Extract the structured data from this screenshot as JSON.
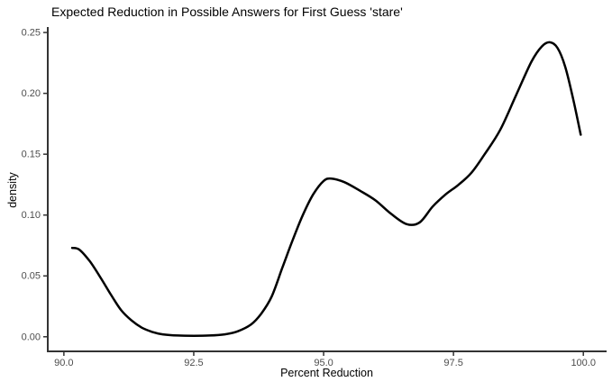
{
  "chart": {
    "title": "Expected Reduction in Possible Answers for First Guess 'stare'",
    "xlabel": "Percent Reduction",
    "ylabel": "density"
  },
  "chart_data": {
    "type": "line",
    "subtype": "density-curve",
    "title": "Expected Reduction in Possible Answers for First Guess 'stare'",
    "xlabel": "Percent Reduction",
    "ylabel": "density",
    "xlim": [
      89.69,
      100.43
    ],
    "ylim": [
      -0.012,
      0.2545
    ],
    "x_ticks": [
      90.0,
      92.5,
      95.0,
      97.5,
      100.0
    ],
    "x_tick_labels": [
      "90.0",
      "92.5",
      "95.0",
      "97.5",
      "100.0"
    ],
    "y_ticks": [
      0.0,
      0.05,
      0.1,
      0.15,
      0.2,
      0.25
    ],
    "y_tick_labels": [
      "0.00",
      "0.05",
      "0.10",
      "0.15",
      "0.20",
      "0.25"
    ],
    "grid": false,
    "legend_position": "none",
    "line_color": "#000000",
    "line_width": 2.5,
    "axis_line_color": "#333333",
    "tick_color": "#333333",
    "tick_label_color": "#4d4d4d",
    "background_color": "#ffffff",
    "series": [
      {
        "name": "density",
        "x": [
          90.16,
          90.3,
          90.5,
          90.7,
          90.9,
          91.1,
          91.3,
          91.5,
          91.7,
          91.9,
          92.2,
          92.5,
          92.8,
          93.1,
          93.35,
          93.6,
          93.8,
          94.0,
          94.2,
          94.4,
          94.6,
          94.8,
          95.0,
          95.15,
          95.4,
          95.7,
          96.0,
          96.3,
          96.6,
          96.85,
          97.1,
          97.35,
          97.6,
          97.85,
          98.1,
          98.4,
          98.7,
          99.0,
          99.2,
          99.35,
          99.5,
          99.65,
          99.8,
          99.95
        ],
        "y": [
          0.073,
          0.0715,
          0.062,
          0.049,
          0.035,
          0.022,
          0.0135,
          0.0075,
          0.004,
          0.002,
          0.001,
          0.0008,
          0.001,
          0.002,
          0.0045,
          0.01,
          0.019,
          0.033,
          0.056,
          0.079,
          0.1,
          0.117,
          0.128,
          0.13,
          0.127,
          0.12,
          0.112,
          0.101,
          0.0925,
          0.094,
          0.107,
          0.117,
          0.125,
          0.135,
          0.15,
          0.17,
          0.198,
          0.226,
          0.2385,
          0.242,
          0.2375,
          0.222,
          0.196,
          0.166
        ]
      }
    ],
    "annotations": {
      "local_max_1": {
        "x": 95.1,
        "y": 0.13
      },
      "local_min": {
        "x": 96.6,
        "y": 0.092
      },
      "peak": {
        "x": 99.3,
        "y": 0.242
      },
      "right_end": {
        "x": 100.0,
        "y": 0.166
      },
      "left_end": {
        "x": 90.2,
        "y": 0.073
      }
    }
  }
}
